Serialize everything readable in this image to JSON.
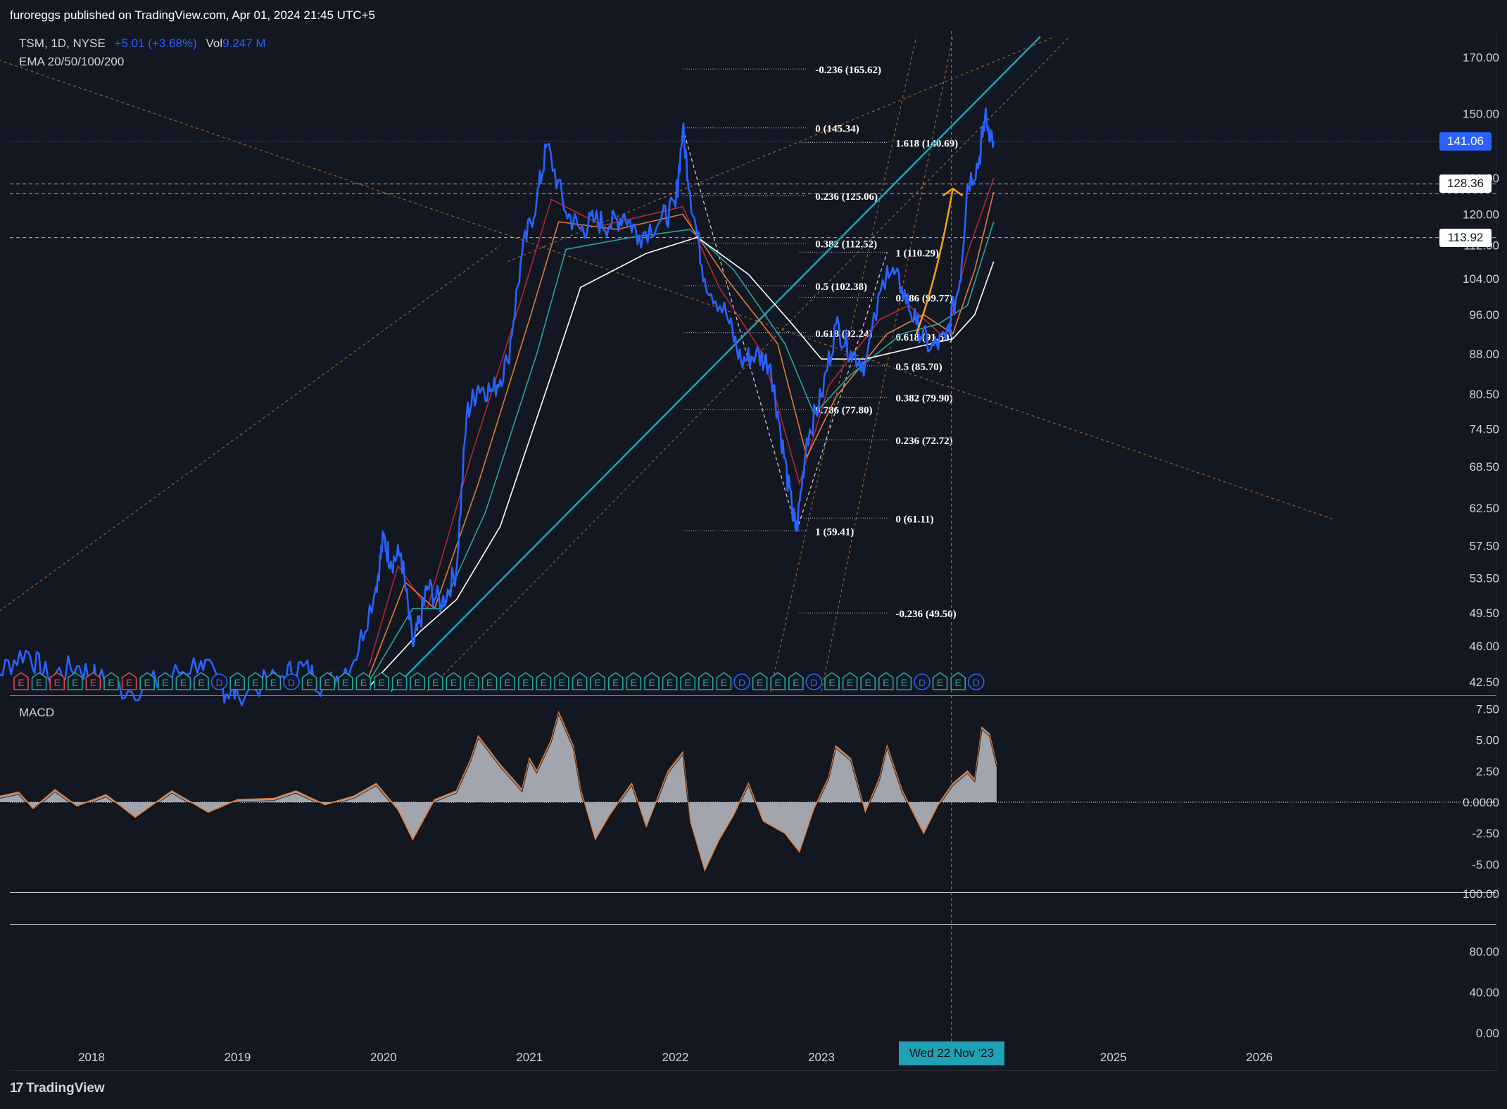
{
  "header": {
    "published_line": "furoreggs published on TradingView.com, Apr 01, 2024 21:45 UTC+5"
  },
  "legend": {
    "symbol_line": "TSM, 1D, NYSE",
    "change": "+5.01 (+3.68%)",
    "vol_label": "Vol",
    "vol_value": "9.247 M",
    "indicator_line": "EMA 20/50/100/200"
  },
  "macd_label": "MACD",
  "brand": "TradingView",
  "crosshair_date": "Wed 22 Nov '23",
  "colors": {
    "background": "#131722",
    "price": "#2962ff",
    "ema20": "#b22833",
    "ema50": "#e07b39",
    "ema100": "#26a69a",
    "ema200": "#ffffff",
    "channel": "#1aa7b8",
    "fib_dashed": "#c97a2e",
    "arrow": "#f7a21b",
    "macd_hist": "#b2b5be",
    "macd_signal": "#e07b39"
  },
  "chart_data": {
    "type": "line",
    "title": "TSM, 1D, NYSE",
    "x_ticks": [
      "2018",
      "2019",
      "2020",
      "2021",
      "2022",
      "2023",
      "2025",
      "2026"
    ],
    "y_ticks": [
      "170.00",
      "150.00",
      "130.00",
      "120.00",
      "112.00",
      "104.00",
      "96.00",
      "88.00",
      "80.50",
      "74.50",
      "68.50",
      "62.50",
      "57.50",
      "53.50",
      "49.50",
      "46.00",
      "42.50"
    ],
    "y_scale": "log",
    "ylim": [
      41.5,
      178
    ],
    "price_series": {
      "name": "TSM",
      "points": [
        [
          2017.05,
          42.5
        ],
        [
          2017.35,
          43.2
        ],
        [
          2017.55,
          45.5
        ],
        [
          2017.7,
          43.0
        ],
        [
          2017.9,
          44.0
        ],
        [
          2018.05,
          42.8
        ],
        [
          2018.25,
          41.6
        ],
        [
          2018.5,
          42.7
        ],
        [
          2018.75,
          44.5
        ],
        [
          2018.9,
          41.8
        ],
        [
          2019.0,
          41.4
        ],
        [
          2019.3,
          43.0
        ],
        [
          2019.45,
          44.0
        ],
        [
          2019.6,
          42.0
        ],
        [
          2019.8,
          44.6
        ],
        [
          2019.95,
          52.5
        ],
        [
          2020.0,
          58.5
        ],
        [
          2020.05,
          55.5
        ],
        [
          2020.12,
          56.5
        ],
        [
          2020.2,
          46.0
        ],
        [
          2020.25,
          48.5
        ],
        [
          2020.3,
          52.5
        ],
        [
          2020.4,
          50.5
        ],
        [
          2020.5,
          54.5
        ],
        [
          2020.57,
          77.0
        ],
        [
          2020.65,
          82.0
        ],
        [
          2020.75,
          81.0
        ],
        [
          2020.85,
          86.5
        ],
        [
          2020.95,
          110.0
        ],
        [
          2021.05,
          124.0
        ],
        [
          2021.12,
          140.0
        ],
        [
          2021.25,
          120.5
        ],
        [
          2021.35,
          116.0
        ],
        [
          2021.45,
          118.5
        ],
        [
          2021.55,
          117.0
        ],
        [
          2021.65,
          120.0
        ],
        [
          2021.75,
          114.5
        ],
        [
          2021.9,
          118.5
        ],
        [
          2022.0,
          122.0
        ],
        [
          2022.05,
          145.0
        ],
        [
          2022.1,
          126.0
        ],
        [
          2022.2,
          104.0
        ],
        [
          2022.35,
          96.0
        ],
        [
          2022.45,
          86.5
        ],
        [
          2022.55,
          88.0
        ],
        [
          2022.65,
          86.0
        ],
        [
          2022.72,
          74.0
        ],
        [
          2022.8,
          62.0
        ],
        [
          2022.83,
          59.41
        ],
        [
          2022.9,
          73.0
        ],
        [
          2023.0,
          80.0
        ],
        [
          2023.1,
          94.0
        ],
        [
          2023.2,
          88.5
        ],
        [
          2023.3,
          86.0
        ],
        [
          2023.45,
          107.0
        ],
        [
          2023.55,
          102.0
        ],
        [
          2023.65,
          94.0
        ],
        [
          2023.75,
          89.0
        ],
        [
          2023.85,
          91.0
        ],
        [
          2023.95,
          103.5
        ],
        [
          2024.0,
          128.0
        ],
        [
          2024.08,
          135.0
        ],
        [
          2024.12,
          149.0
        ],
        [
          2024.18,
          141.06
        ]
      ]
    },
    "ema_series": [
      {
        "name": "EMA 20",
        "points": [
          [
            2019.9,
            44.0
          ],
          [
            2020.1,
            55.0
          ],
          [
            2020.3,
            50.0
          ],
          [
            2020.6,
            70.0
          ],
          [
            2020.95,
            100.0
          ],
          [
            2021.15,
            124.0
          ],
          [
            2021.5,
            117.0
          ],
          [
            2022.05,
            122.0
          ],
          [
            2022.3,
            102.0
          ],
          [
            2022.6,
            88.0
          ],
          [
            2022.85,
            66.0
          ],
          [
            2023.05,
            82.0
          ],
          [
            2023.4,
            95.0
          ],
          [
            2023.6,
            98.0
          ],
          [
            2023.85,
            91.0
          ],
          [
            2024.0,
            110.0
          ],
          [
            2024.18,
            130.0
          ]
        ]
      },
      {
        "name": "EMA 50",
        "points": [
          [
            2019.9,
            43.0
          ],
          [
            2020.15,
            53.0
          ],
          [
            2020.35,
            50.0
          ],
          [
            2020.65,
            66.0
          ],
          [
            2021.0,
            95.0
          ],
          [
            2021.2,
            118.0
          ],
          [
            2021.6,
            116.0
          ],
          [
            2022.05,
            120.0
          ],
          [
            2022.35,
            104.0
          ],
          [
            2022.7,
            90.0
          ],
          [
            2022.9,
            70.0
          ],
          [
            2023.1,
            80.0
          ],
          [
            2023.45,
            92.0
          ],
          [
            2023.7,
            96.0
          ],
          [
            2023.9,
            92.0
          ],
          [
            2024.05,
            106.0
          ],
          [
            2024.18,
            126.0
          ]
        ]
      },
      {
        "name": "EMA 100",
        "points": [
          [
            2019.9,
            42.5
          ],
          [
            2020.2,
            50.0
          ],
          [
            2020.4,
            50.0
          ],
          [
            2020.7,
            62.0
          ],
          [
            2021.05,
            88.0
          ],
          [
            2021.25,
            111.0
          ],
          [
            2021.7,
            114.0
          ],
          [
            2022.1,
            116.0
          ],
          [
            2022.4,
            106.0
          ],
          [
            2022.75,
            90.0
          ],
          [
            2022.95,
            77.0
          ],
          [
            2023.2,
            84.0
          ],
          [
            2023.55,
            92.0
          ],
          [
            2023.8,
            94.0
          ],
          [
            2024.0,
            98.0
          ],
          [
            2024.18,
            118.0
          ]
        ]
      },
      {
        "name": "EMA 200",
        "points": [
          [
            2019.9,
            42.0
          ],
          [
            2020.25,
            47.5
          ],
          [
            2020.5,
            51.0
          ],
          [
            2020.8,
            60.0
          ],
          [
            2021.1,
            80.0
          ],
          [
            2021.35,
            102.0
          ],
          [
            2021.8,
            110.0
          ],
          [
            2022.15,
            114.0
          ],
          [
            2022.5,
            105.0
          ],
          [
            2022.8,
            94.0
          ],
          [
            2023.0,
            87.0
          ],
          [
            2023.3,
            87.0
          ],
          [
            2023.6,
            89.0
          ],
          [
            2023.9,
            91.0
          ],
          [
            2024.05,
            96.0
          ],
          [
            2024.18,
            108.0
          ]
        ]
      }
    ],
    "price_tags": [
      {
        "value": 141.06,
        "label": "141.06",
        "bg": "#2962ff",
        "fg": "#ffffff"
      },
      {
        "value": 128.36,
        "label": "128.36",
        "bg": "#ffffff",
        "fg": "#131722"
      },
      {
        "value": 113.92,
        "label": "113.92",
        "bg": "#ffffff",
        "fg": "#131722"
      }
    ],
    "horizontal_levels": [
      141.06,
      128.36,
      125.6,
      113.92
    ],
    "fib_retracement_1": {
      "x_range": [
        2022.05,
        2022.9
      ],
      "levels": [
        {
          "value": 165.62,
          "label": "-0.236 (165.62)"
        },
        {
          "value": 145.34,
          "label": "0 (145.34)"
        },
        {
          "value": 125.06,
          "label": "0.236 (125.06)"
        },
        {
          "value": 112.52,
          "label": "0.382 (112.52)"
        },
        {
          "value": 102.38,
          "label": "0.5 (102.38)"
        },
        {
          "value": 92.24,
          "label": "0.618 (92.24)"
        },
        {
          "value": 77.8,
          "label": "0.786 (77.80)"
        },
        {
          "value": 59.41,
          "label": "1 (59.41)"
        }
      ]
    },
    "fib_retracement_2": {
      "x_range": [
        2022.85,
        2023.45
      ],
      "levels": [
        {
          "value": 140.69,
          "label": "1.618 (140.69)"
        },
        {
          "value": 110.29,
          "label": "1 (110.29)"
        },
        {
          "value": 99.77,
          "label": "0.786 (99.77)"
        },
        {
          "value": 91.5,
          "label": "0.618 (91.50)"
        },
        {
          "value": 85.7,
          "label": "0.5 (85.70)"
        },
        {
          "value": 79.9,
          "label": "0.382 (79.90)"
        },
        {
          "value": 72.72,
          "label": "0.236 (72.72)"
        },
        {
          "value": 61.11,
          "label": "0 (61.11)"
        },
        {
          "value": 49.5,
          "label": "-0.236 (49.50)"
        }
      ]
    },
    "channel_line": [
      [
        2020.05,
        41.6
      ],
      [
        2024.5,
        178.0
      ]
    ],
    "arrow": {
      "from": [
        2023.65,
        92.0
      ],
      "to": [
        2023.9,
        127.0
      ]
    },
    "events": [
      "E",
      "E",
      "E",
      "E",
      "E",
      "E",
      "E",
      "E",
      "E",
      "E",
      "E",
      "D",
      "E",
      "E",
      "E",
      "D",
      "E",
      "E",
      "E",
      "E",
      "E",
      "E",
      "E",
      "E",
      "E",
      "E",
      "E",
      "E",
      "E",
      "E",
      "E",
      "E",
      "E",
      "E",
      "E",
      "E",
      "E",
      "E",
      "E",
      "E",
      "D",
      "E",
      "E",
      "E",
      "D",
      "E",
      "E",
      "E",
      "E",
      "E",
      "D",
      "E",
      "E",
      "D"
    ],
    "macd": {
      "label": "MACD",
      "y_ticks": [
        "7.50",
        "5.00",
        "2.50",
        "0.0000",
        "-2.50",
        "-5.00"
      ],
      "ylim": [
        -6.5,
        7.8
      ],
      "points": [
        [
          2017.0,
          0.1
        ],
        [
          2017.3,
          0.3
        ],
        [
          2017.5,
          0.8
        ],
        [
          2017.6,
          -0.5
        ],
        [
          2017.75,
          1.0
        ],
        [
          2017.9,
          -0.3
        ],
        [
          2018.1,
          0.6
        ],
        [
          2018.3,
          -1.2
        ],
        [
          2018.55,
          0.9
        ],
        [
          2018.8,
          -0.8
        ],
        [
          2019.0,
          0.2
        ],
        [
          2019.25,
          0.3
        ],
        [
          2019.4,
          0.9
        ],
        [
          2019.6,
          -0.2
        ],
        [
          2019.8,
          0.5
        ],
        [
          2019.95,
          1.5
        ],
        [
          2020.1,
          -0.6
        ],
        [
          2020.2,
          -3.0
        ],
        [
          2020.35,
          0.2
        ],
        [
          2020.5,
          0.9
        ],
        [
          2020.6,
          3.5
        ],
        [
          2020.65,
          5.3
        ],
        [
          2020.8,
          3.0
        ],
        [
          2020.95,
          1.0
        ],
        [
          2021.0,
          3.5
        ],
        [
          2021.05,
          2.5
        ],
        [
          2021.15,
          5.0
        ],
        [
          2021.2,
          7.2
        ],
        [
          2021.3,
          4.5
        ],
        [
          2021.35,
          1.0
        ],
        [
          2021.45,
          -3.0
        ],
        [
          2021.55,
          -1.0
        ],
        [
          2021.7,
          1.5
        ],
        [
          2021.8,
          -2.0
        ],
        [
          2021.95,
          2.5
        ],
        [
          2022.05,
          4.0
        ],
        [
          2022.1,
          -1.5
        ],
        [
          2022.2,
          -5.5
        ],
        [
          2022.3,
          -3.0
        ],
        [
          2022.4,
          -1.0
        ],
        [
          2022.5,
          1.5
        ],
        [
          2022.6,
          -1.5
        ],
        [
          2022.75,
          -2.5
        ],
        [
          2022.85,
          -4.0
        ],
        [
          2022.95,
          -0.5
        ],
        [
          2023.05,
          2.0
        ],
        [
          2023.1,
          4.5
        ],
        [
          2023.2,
          3.5
        ],
        [
          2023.3,
          -0.8
        ],
        [
          2023.4,
          2.0
        ],
        [
          2023.45,
          4.5
        ],
        [
          2023.55,
          1.0
        ],
        [
          2023.7,
          -2.5
        ],
        [
          2023.8,
          -0.2
        ],
        [
          2023.9,
          1.5
        ],
        [
          2024.0,
          2.5
        ],
        [
          2024.05,
          1.8
        ],
        [
          2024.1,
          6.0
        ],
        [
          2024.15,
          5.5
        ],
        [
          2024.2,
          3.0
        ]
      ]
    },
    "lower_pane": {
      "y_ticks": [
        "100.00",
        "80.00",
        "40.00",
        "0.00"
      ]
    }
  }
}
